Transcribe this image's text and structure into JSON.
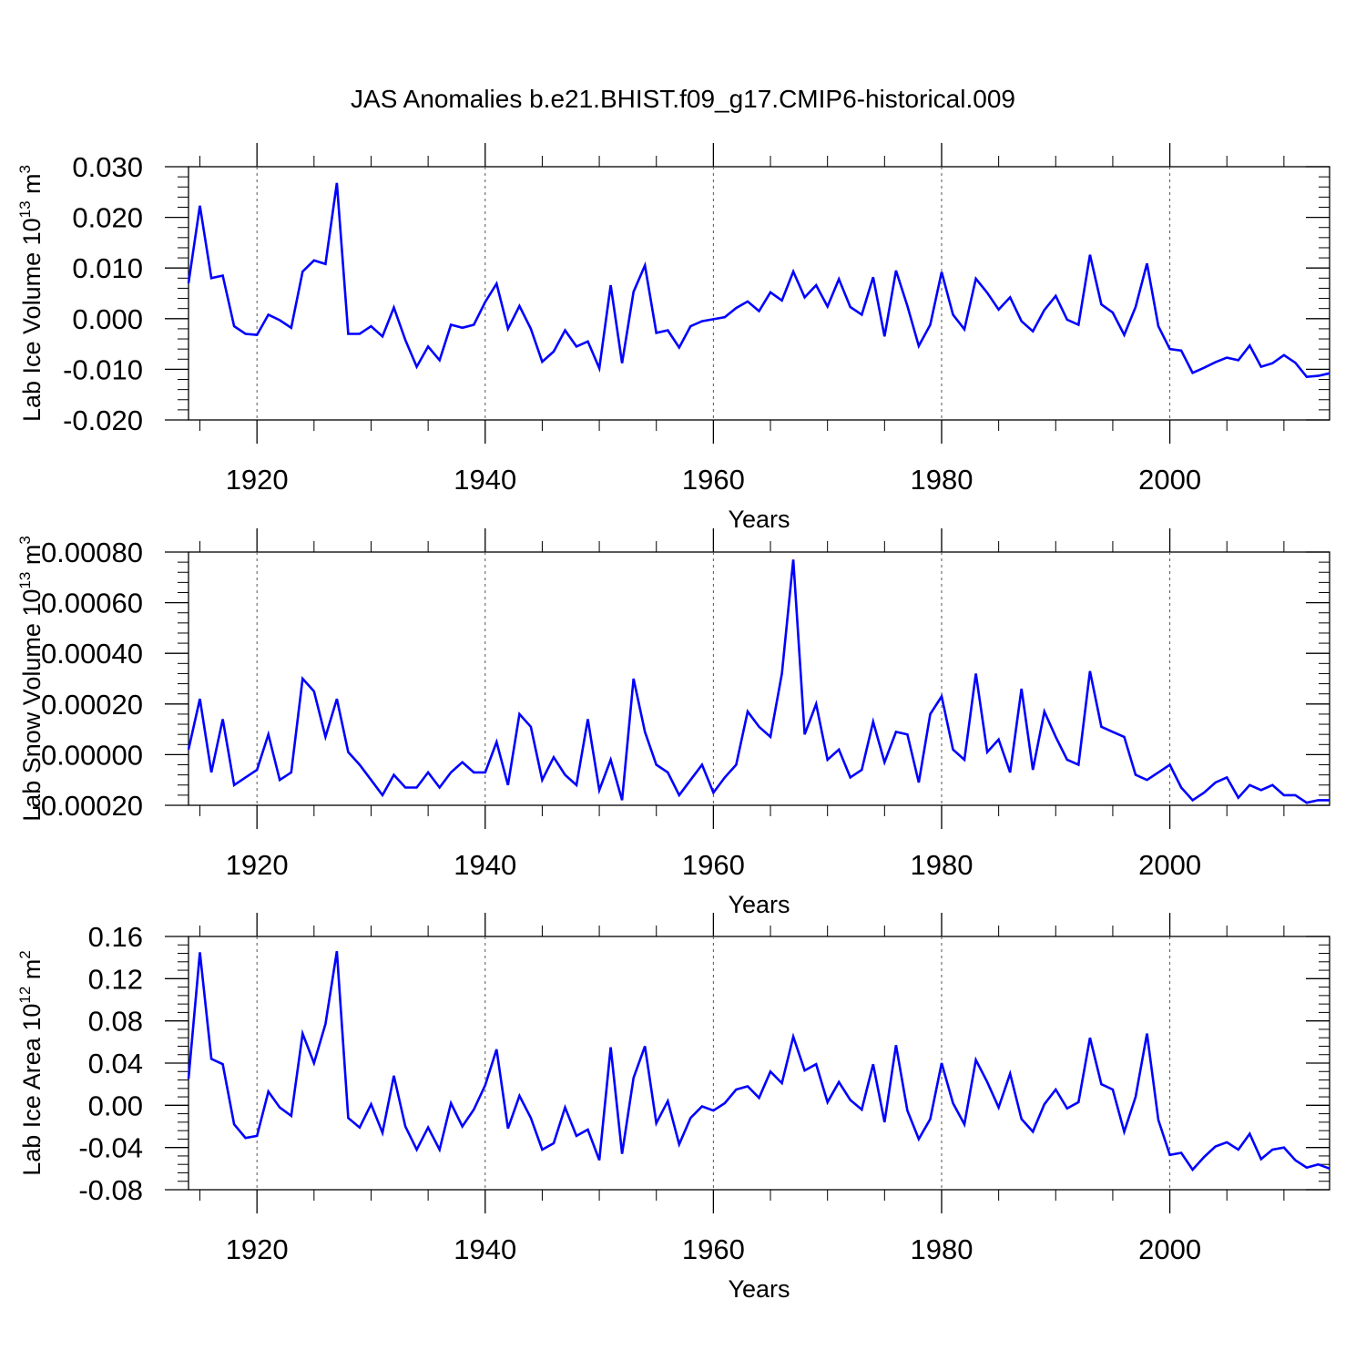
{
  "figure": {
    "title": "JAS Anomalies b.e21.BHIST.f09_g17.CMIP6-historical.009",
    "line_color": "#0000ff",
    "grid_color": "#555555"
  },
  "chart_data": [
    {
      "type": "line",
      "ylabel_main": "Lab Ice Volume 10",
      "ylabel_exp": "13",
      "ylabel_unit": "m",
      "ylabel_unit_exp": "3",
      "xlabel": "Years",
      "xlim": [
        1914,
        2014
      ],
      "ylim": [
        -0.02,
        0.03
      ],
      "x_ticks": [
        1920,
        1940,
        1960,
        1980,
        2000
      ],
      "x_tick_labels": [
        "1920",
        "1940",
        "1960",
        "1980",
        "2000"
      ],
      "y_ticks": [
        0.03,
        0.02,
        0.01,
        0.0,
        -0.01,
        -0.02
      ],
      "y_tick_labels": [
        "0.030",
        "0.020",
        "0.010",
        "0.000",
        "-0.010",
        "-0.020"
      ],
      "grid_x": [
        1920,
        1940,
        1960,
        1980,
        2000
      ],
      "series": [
        {
          "name": "Lab Ice Volume",
          "x_start": 1914,
          "values": [
            0.007,
            0.0223,
            0.008,
            0.0085,
            -0.0015,
            -0.003,
            -0.0032,
            0.0008,
            -0.0003,
            -0.0018,
            0.0093,
            0.0115,
            0.0108,
            0.0268,
            -0.003,
            -0.003,
            -0.0015,
            -0.0035,
            0.0022,
            -0.0042,
            -0.0095,
            -0.0055,
            -0.0082,
            -0.0012,
            -0.0018,
            -0.0012,
            0.0033,
            0.0069,
            -0.002,
            0.0025,
            -0.002,
            -0.0085,
            -0.0065,
            -0.0023,
            -0.0055,
            -0.0045,
            -0.0098,
            0.0066,
            -0.0088,
            0.0053,
            0.0105,
            -0.0028,
            -0.0023,
            -0.0057,
            -0.0015,
            -0.0005,
            -0.0001,
            0.0003,
            0.0021,
            0.0034,
            0.0015,
            0.0052,
            0.0036,
            0.0093,
            0.0042,
            0.0066,
            0.0024,
            0.0078,
            0.0023,
            0.0008,
            0.0082,
            -0.0035,
            0.0095,
            0.0025,
            -0.0054,
            -0.0012,
            0.0092,
            0.0008,
            -0.0021,
            0.0079,
            0.0051,
            0.0018,
            0.0042,
            -0.0005,
            -0.0025,
            0.0017,
            0.0045,
            -0.0002,
            -0.0012,
            0.0126,
            0.0028,
            0.0012,
            -0.0032,
            0.0023,
            0.0109,
            -0.0015,
            -0.006,
            -0.0063,
            -0.0107,
            -0.0097,
            -0.0086,
            -0.0077,
            -0.0082,
            -0.0053,
            -0.0095,
            -0.0088,
            -0.0072,
            -0.0087,
            -0.0115,
            -0.0113,
            -0.0108
          ]
        }
      ]
    },
    {
      "type": "line",
      "ylabel_main": "Lab Snow Volume 10",
      "ylabel_exp": "13",
      "ylabel_unit": "m",
      "ylabel_unit_exp": "3",
      "xlabel": "Years",
      "xlim": [
        1914,
        2014
      ],
      "ylim": [
        -0.0002,
        0.0008
      ],
      "x_ticks": [
        1920,
        1940,
        1960,
        1980,
        2000
      ],
      "x_tick_labels": [
        "1920",
        "1940",
        "1960",
        "1980",
        "2000"
      ],
      "y_ticks": [
        0.0008,
        0.0006,
        0.0004,
        0.0002,
        0.0,
        -0.0002
      ],
      "y_tick_labels": [
        "0.00080",
        "0.00060",
        "0.00040",
        "0.00020",
        "0.00000",
        "-0.00020"
      ],
      "grid_x": [
        1920,
        1940,
        1960,
        1980,
        2000
      ],
      "series": [
        {
          "name": "Lab Snow Volume",
          "x_start": 1914,
          "values": [
            2e-05,
            0.00022,
            -7e-05,
            0.00014,
            -0.00012,
            -9e-05,
            -6e-05,
            8e-05,
            -0.0001,
            -7e-05,
            0.0003,
            0.00025,
            7e-05,
            0.00022,
            1e-05,
            -4e-05,
            -0.0001,
            -0.00016,
            -8e-05,
            -0.00013,
            -0.00013,
            -7e-05,
            -0.00013,
            -7e-05,
            -3e-05,
            -7e-05,
            -7e-05,
            5e-05,
            -0.00012,
            0.00016,
            0.00011,
            -0.0001,
            -1e-05,
            -8e-05,
            -0.00012,
            0.00014,
            -0.00014,
            -2e-05,
            -0.00018,
            0.0003,
            9e-05,
            -4e-05,
            -7e-05,
            -0.00016,
            -0.0001,
            -4e-05,
            -0.00015,
            -9e-05,
            -4e-05,
            0.00017,
            0.00011,
            7e-05,
            0.00032,
            0.00077,
            8e-05,
            0.0002,
            -2e-05,
            2e-05,
            -9e-05,
            -6e-05,
            0.00013,
            -3e-05,
            9e-05,
            8e-05,
            -0.00011,
            0.00016,
            0.00023,
            2e-05,
            -2e-05,
            0.00032,
            1e-05,
            6e-05,
            -7e-05,
            0.00026,
            -6e-05,
            0.00017,
            7e-05,
            -2e-05,
            -4e-05,
            0.00033,
            0.00011,
            9e-05,
            7e-05,
            -8e-05,
            -0.0001,
            -7e-05,
            -4e-05,
            -0.00013,
            -0.00018,
            -0.00015,
            -0.00011,
            -9e-05,
            -0.00017,
            -0.00012,
            -0.00014,
            -0.00012,
            -0.00016,
            -0.00016,
            -0.00019,
            -0.00018,
            -0.00018
          ]
        }
      ]
    },
    {
      "type": "line",
      "ylabel_main": "Lab Ice Area 10",
      "ylabel_exp": "12",
      "ylabel_unit": "m",
      "ylabel_unit_exp": "2",
      "xlabel": "Years",
      "xlim": [
        1914,
        2014
      ],
      "ylim": [
        -0.08,
        0.16
      ],
      "x_ticks": [
        1920,
        1940,
        1960,
        1980,
        2000
      ],
      "x_tick_labels": [
        "1920",
        "1940",
        "1960",
        "1980",
        "2000"
      ],
      "y_ticks": [
        0.16,
        0.12,
        0.08,
        0.04,
        0.0,
        -0.04,
        -0.08
      ],
      "y_tick_labels": [
        "0.16",
        "0.12",
        "0.08",
        "0.04",
        "0.00",
        "-0.04",
        "-0.08"
      ],
      "grid_x": [
        1920,
        1940,
        1960,
        1980,
        2000
      ],
      "series": [
        {
          "name": "Lab Ice Area",
          "x_start": 1914,
          "values": [
            0.025,
            0.145,
            0.044,
            0.039,
            -0.018,
            -0.031,
            -0.029,
            0.013,
            -0.002,
            -0.01,
            0.068,
            0.04,
            0.077,
            0.146,
            -0.012,
            -0.021,
            0.001,
            -0.026,
            0.028,
            -0.02,
            -0.042,
            -0.021,
            -0.042,
            0.002,
            -0.02,
            -0.004,
            0.019,
            0.053,
            -0.022,
            0.009,
            -0.012,
            -0.042,
            -0.036,
            -0.002,
            -0.029,
            -0.023,
            -0.052,
            0.055,
            -0.046,
            0.026,
            0.056,
            -0.017,
            0.004,
            -0.037,
            -0.012,
            -0.001,
            -0.005,
            0.002,
            0.015,
            0.018,
            0.007,
            0.032,
            0.021,
            0.065,
            0.033,
            0.039,
            0.003,
            0.022,
            0.005,
            -0.004,
            0.039,
            -0.016,
            0.057,
            -0.005,
            -0.032,
            -0.013,
            0.04,
            0.002,
            -0.018,
            0.043,
            0.022,
            -0.002,
            0.03,
            -0.013,
            -0.025,
            0.001,
            0.015,
            -0.003,
            0.003,
            0.064,
            0.02,
            0.015,
            -0.025,
            0.008,
            0.068,
            -0.014,
            -0.047,
            -0.045,
            -0.061,
            -0.049,
            -0.039,
            -0.035,
            -0.042,
            -0.027,
            -0.051,
            -0.042,
            -0.04,
            -0.052,
            -0.059,
            -0.056,
            -0.06
          ]
        }
      ]
    }
  ]
}
